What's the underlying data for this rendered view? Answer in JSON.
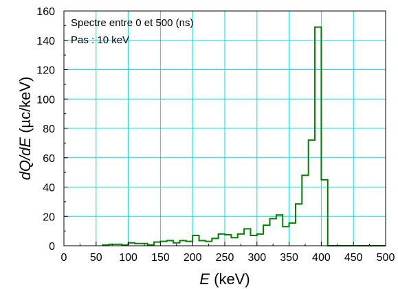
{
  "chart_data": {
    "type": "line",
    "step": true,
    "annotations": [
      "Spectre entre 0 et 500 (ns)",
      "Pas : 10 keV"
    ],
    "xlabel": {
      "italic": "E",
      "rest": " (keV)"
    },
    "ylabel": {
      "italic": "dQ/dE",
      "rest": " (µc/keV)"
    },
    "xlim": [
      0,
      500
    ],
    "ylim": [
      0,
      160
    ],
    "xticks": [
      0,
      50,
      100,
      150,
      200,
      250,
      300,
      350,
      400,
      450,
      500
    ],
    "yticks": [
      0,
      20,
      40,
      60,
      80,
      100,
      120,
      140,
      160
    ],
    "grid": true,
    "colors": {
      "series": "#008000",
      "grid": "#00e0e0",
      "axis": "#000000"
    },
    "bin_width": 10,
    "series": [
      {
        "x": [
          60,
          70,
          80,
          90,
          100,
          110,
          120,
          130,
          140,
          150,
          160,
          170,
          180,
          190,
          200,
          210,
          220,
          230,
          240,
          250,
          260,
          270,
          280,
          290,
          300,
          310,
          320,
          330,
          340,
          350,
          360,
          370,
          380,
          390,
          400,
          410,
          420,
          430,
          440,
          450,
          460,
          470,
          480,
          490
        ],
        "y": [
          0.5,
          1,
          1,
          0.5,
          2,
          1.5,
          1.5,
          0.5,
          2.5,
          3,
          3.5,
          2,
          3.5,
          3,
          7,
          3.5,
          3,
          5,
          8,
          7.5,
          5.5,
          8,
          11.5,
          7,
          8,
          14,
          18.5,
          21,
          13,
          15.5,
          28.5,
          48,
          72,
          149,
          45,
          0,
          0,
          0,
          0,
          0,
          0,
          0,
          0,
          0
        ]
      }
    ]
  }
}
